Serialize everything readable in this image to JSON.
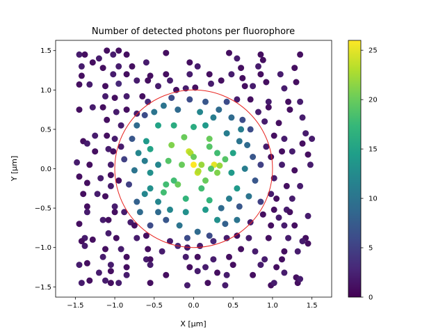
{
  "chart_data": {
    "type": "scatter",
    "title": "Number of detected photons per fluorophore",
    "xlabel": "X [μm]",
    "ylabel": "Y [μm]",
    "xlim": [
      -1.75,
      1.75
    ],
    "ylim": [
      -1.63,
      1.63
    ],
    "xticks": [
      "−1.5",
      "−1.0",
      "−0.5",
      "0.0",
      "0.5",
      "1.0",
      "1.5"
    ],
    "xtick_values": [
      -1.5,
      -1.0,
      -0.5,
      0.0,
      0.5,
      1.0,
      1.5
    ],
    "yticks": [
      "−1.5",
      "−1.0",
      "−0.5",
      "0.0",
      "0.5",
      "1.0",
      "1.5"
    ],
    "ytick_values": [
      -1.5,
      -1.0,
      -0.5,
      0.0,
      0.5,
      1.0,
      1.5
    ],
    "grid": false,
    "colormap": "viridis",
    "colorbar": {
      "range": [
        0,
        26
      ],
      "ticks": [
        "0",
        "5",
        "10",
        "15",
        "20",
        "25"
      ],
      "tick_values": [
        0,
        5,
        10,
        15,
        20,
        25
      ]
    },
    "circle": {
      "center": [
        0,
        0
      ],
      "radius": 1.0,
      "color": "#e8231f"
    },
    "points": [
      [
        0.0,
        0.05,
        26
      ],
      [
        0.26,
        0.05,
        25
      ],
      [
        0.05,
        -0.05,
        24
      ],
      [
        -0.06,
        0.22,
        24
      ],
      [
        -0.04,
        0.2,
        23
      ],
      [
        0.06,
        -0.03,
        23
      ],
      [
        0.33,
        0.04,
        22
      ],
      [
        -0.28,
        0.3,
        21
      ],
      [
        0.2,
        0.38,
        20
      ],
      [
        -0.12,
        0.4,
        20
      ],
      [
        -0.32,
        0.1,
        19
      ],
      [
        -0.2,
        -0.2,
        20
      ],
      [
        0.4,
        0.12,
        19
      ],
      [
        0.22,
        0.0,
        19
      ],
      [
        -0.35,
        -0.2,
        18
      ],
      [
        0.1,
        -0.25,
        18
      ],
      [
        0.2,
        -0.4,
        17
      ],
      [
        -0.1,
        -0.38,
        17
      ],
      [
        0.3,
        0.2,
        18
      ],
      [
        -0.38,
        -0.3,
        18
      ],
      [
        -0.45,
        0.55,
        15
      ],
      [
        -0.25,
        0.55,
        16
      ],
      [
        0.0,
        0.53,
        16
      ],
      [
        -0.55,
        0.25,
        15
      ],
      [
        -0.6,
        0.35,
        14
      ],
      [
        0.5,
        0.2,
        15
      ],
      [
        0.48,
        -0.05,
        14
      ],
      [
        0.55,
        -0.25,
        14
      ],
      [
        -0.55,
        -0.05,
        13
      ],
      [
        -0.62,
        -0.32,
        12
      ],
      [
        0.3,
        -0.65,
        13
      ],
      [
        0.15,
        -0.52,
        14
      ],
      [
        -0.3,
        -0.52,
        12
      ],
      [
        0.08,
        0.72,
        12
      ],
      [
        -0.45,
        0.05,
        12
      ],
      [
        -0.62,
        0.1,
        11
      ],
      [
        0.42,
        0.45,
        11
      ],
      [
        0.6,
        0.5,
        11
      ],
      [
        0.65,
        0.0,
        11
      ],
      [
        -0.7,
        0.2,
        12
      ],
      [
        -0.38,
        0.8,
        10
      ],
      [
        -0.5,
        0.72,
        10
      ],
      [
        0.25,
        0.65,
        11
      ],
      [
        -0.75,
        -0.02,
        10
      ],
      [
        0.7,
        -0.35,
        10
      ],
      [
        0.55,
        -0.65,
        10
      ],
      [
        -0.18,
        -0.72,
        10
      ],
      [
        -0.45,
        -0.55,
        9
      ],
      [
        -0.68,
        -0.55,
        9
      ],
      [
        0.05,
        -0.8,
        9
      ],
      [
        0.32,
        0.75,
        9
      ],
      [
        0.48,
        0.65,
        9
      ],
      [
        0.68,
        0.3,
        9
      ],
      [
        -0.72,
        0.55,
        9
      ],
      [
        0.35,
        -0.5,
        9
      ],
      [
        -0.2,
        0.75,
        9
      ],
      [
        0.0,
        0.15,
        20
      ],
      [
        0.3,
        -0.05,
        21
      ],
      [
        -0.25,
        -0.15,
        18
      ],
      [
        0.2,
        0.28,
        19
      ],
      [
        -0.55,
        -0.25,
        13
      ],
      [
        -0.72,
        -0.42,
        8
      ],
      [
        -0.35,
        -0.65,
        7
      ],
      [
        0.4,
        -0.7,
        8
      ],
      [
        0.58,
        -0.48,
        7
      ],
      [
        0.75,
        0.15,
        7
      ],
      [
        0.78,
        -0.15,
        7
      ],
      [
        -0.78,
        0.38,
        7
      ],
      [
        -0.62,
        0.68,
        6
      ],
      [
        0.15,
        0.85,
        7
      ],
      [
        -0.05,
        0.88,
        6
      ],
      [
        0.62,
        0.62,
        6
      ],
      [
        0.72,
        0.5,
        6
      ],
      [
        -0.28,
        0.9,
        6
      ],
      [
        0.42,
        0.85,
        6
      ],
      [
        -0.08,
        -0.88,
        6
      ],
      [
        0.2,
        -0.85,
        6
      ],
      [
        -0.55,
        -0.72,
        6
      ],
      [
        -0.82,
        -0.2,
        5
      ],
      [
        0.85,
        0.05,
        5
      ],
      [
        0.85,
        -0.42,
        5
      ],
      [
        -0.88,
        0.12,
        5
      ],
      [
        0.15,
        0.55,
        14
      ],
      [
        -0.1,
        -0.55,
        13
      ],
      [
        0.45,
        -0.38,
        11
      ],
      [
        -0.45,
        -0.42,
        12
      ],
      [
        0.58,
        0.35,
        10
      ],
      [
        0.1,
        0.05,
        22
      ],
      [
        -0.15,
        0.05,
        20
      ],
      [
        0.15,
        -0.15,
        20
      ],
      [
        -1.45,
        1.45,
        2
      ],
      [
        -1.38,
        1.45,
        1
      ],
      [
        -1.2,
        1.4,
        2
      ],
      [
        -1.1,
        1.5,
        1
      ],
      [
        -1.02,
        1.45,
        2
      ],
      [
        -0.95,
        1.5,
        1
      ],
      [
        -0.35,
        1.47,
        1
      ],
      [
        0.45,
        1.47,
        1
      ],
      [
        0.55,
        1.4,
        2
      ],
      [
        0.85,
        1.45,
        1
      ],
      [
        0.88,
        1.38,
        1
      ],
      [
        1.35,
        1.45,
        1
      ],
      [
        -1.42,
        1.3,
        2
      ],
      [
        -1.28,
        1.35,
        1
      ],
      [
        -1.15,
        1.28,
        1
      ],
      [
        -0.95,
        1.3,
        2
      ],
      [
        -0.78,
        1.3,
        1
      ],
      [
        0.6,
        1.28,
        1
      ],
      [
        0.82,
        1.3,
        2
      ],
      [
        1.28,
        1.28,
        1
      ],
      [
        -1.42,
        1.18,
        1
      ],
      [
        -1.02,
        1.2,
        2
      ],
      [
        -0.85,
        1.2,
        1
      ],
      [
        -0.55,
        1.18,
        1
      ],
      [
        -0.35,
        1.2,
        1
      ],
      [
        -0.05,
        1.2,
        2
      ],
      [
        0.2,
        1.2,
        1
      ],
      [
        0.48,
        1.2,
        2
      ],
      [
        0.85,
        1.2,
        1
      ],
      [
        1.1,
        1.2,
        2
      ],
      [
        -1.45,
        1.07,
        1
      ],
      [
        -1.32,
        1.07,
        2
      ],
      [
        -1.12,
        1.05,
        1
      ],
      [
        -0.95,
        1.08,
        3
      ],
      [
        -0.72,
        1.12,
        2
      ],
      [
        -0.58,
        1.12,
        1
      ],
      [
        -0.3,
        1.12,
        2
      ],
      [
        -0.22,
        1.0,
        1
      ],
      [
        -0.1,
        1.02,
        2
      ],
      [
        0.02,
        1.03,
        1
      ],
      [
        0.22,
        1.08,
        2
      ],
      [
        0.35,
        1.12,
        1
      ],
      [
        0.75,
        1.05,
        2
      ],
      [
        0.92,
        1.1,
        1
      ],
      [
        1.15,
        1.02,
        2
      ],
      [
        1.3,
        1.1,
        1
      ],
      [
        -1.12,
        0.92,
        2
      ],
      [
        -1.0,
        0.9,
        1
      ],
      [
        -0.85,
        0.92,
        2
      ],
      [
        -0.65,
        0.92,
        1
      ],
      [
        -0.58,
        0.85,
        3
      ],
      [
        0.55,
        0.88,
        2
      ],
      [
        0.72,
        0.88,
        1
      ],
      [
        0.95,
        0.85,
        2
      ],
      [
        1.2,
        0.85,
        1
      ],
      [
        1.35,
        0.85,
        2
      ],
      [
        -1.45,
        0.75,
        1
      ],
      [
        -1.28,
        0.78,
        2
      ],
      [
        -1.15,
        0.78,
        1
      ],
      [
        -0.98,
        0.72,
        2
      ],
      [
        -0.85,
        0.75,
        1
      ],
      [
        -0.72,
        0.7,
        2
      ],
      [
        0.82,
        0.72,
        2
      ],
      [
        0.95,
        0.78,
        1
      ],
      [
        1.22,
        0.75,
        1
      ],
      [
        1.38,
        0.65,
        2
      ],
      [
        -1.1,
        0.62,
        1
      ],
      [
        -0.92,
        0.55,
        2
      ],
      [
        0.9,
        0.6,
        2
      ],
      [
        1.08,
        0.58,
        1
      ],
      [
        -1.25,
        0.42,
        2
      ],
      [
        -1.1,
        0.42,
        1
      ],
      [
        -1.0,
        0.38,
        2
      ],
      [
        1.02,
        0.42,
        1
      ],
      [
        1.15,
        0.38,
        2
      ],
      [
        1.38,
        0.32,
        1
      ],
      [
        1.5,
        0.38,
        2
      ],
      [
        -1.4,
        0.35,
        1
      ],
      [
        -1.35,
        0.32,
        2
      ],
      [
        -1.02,
        0.22,
        1
      ],
      [
        -1.08,
        0.25,
        2
      ],
      [
        -1.25,
        0.22,
        1
      ],
      [
        -0.92,
        0.28,
        2
      ],
      [
        0.92,
        0.28,
        2
      ],
      [
        1.12,
        0.22,
        1
      ],
      [
        1.25,
        0.22,
        2
      ],
      [
        1.45,
        0.18,
        1
      ],
      [
        -1.48,
        0.08,
        2
      ],
      [
        -1.32,
        0.05,
        1
      ],
      [
        -1.05,
        0.05,
        2
      ],
      [
        0.98,
        0.15,
        1
      ],
      [
        1.12,
        0.05,
        2
      ],
      [
        1.28,
        -0.02,
        1
      ],
      [
        1.48,
        0.05,
        2
      ],
      [
        -1.05,
        -0.08,
        1
      ],
      [
        -1.18,
        -0.12,
        2
      ],
      [
        -1.35,
        -0.18,
        1
      ],
      [
        -1.05,
        -0.22,
        2
      ],
      [
        -0.95,
        -0.15,
        1
      ],
      [
        1.02,
        -0.12,
        2
      ],
      [
        1.18,
        -0.22,
        1
      ],
      [
        1.35,
        -0.22,
        2
      ],
      [
        -1.4,
        -0.32,
        1
      ],
      [
        -1.22,
        -0.32,
        2
      ],
      [
        -1.12,
        -0.35,
        1
      ],
      [
        0.98,
        -0.32,
        2
      ],
      [
        1.05,
        -0.38,
        1
      ],
      [
        1.25,
        -0.38,
        2
      ],
      [
        -1.35,
        -0.48,
        1
      ],
      [
        -1.0,
        -0.48,
        2
      ],
      [
        1.02,
        -0.52,
        1
      ],
      [
        1.18,
        -0.52,
        2
      ],
      [
        -1.35,
        -0.55,
        2
      ],
      [
        -1.0,
        -0.55,
        1
      ],
      [
        -0.88,
        -0.55,
        2
      ],
      [
        0.88,
        -0.58,
        1
      ],
      [
        1.08,
        -0.62,
        2
      ],
      [
        1.22,
        -0.55,
        1
      ],
      [
        -1.15,
        -0.65,
        2
      ],
      [
        -1.08,
        -0.65,
        1
      ],
      [
        -0.8,
        -0.68,
        2
      ],
      [
        -0.75,
        -0.72,
        1
      ],
      [
        0.72,
        -0.68,
        2
      ],
      [
        0.98,
        -0.72,
        1
      ],
      [
        1.15,
        -0.72,
        2
      ],
      [
        1.28,
        -0.72,
        1
      ],
      [
        -1.38,
        -0.88,
        2
      ],
      [
        -1.28,
        -0.9,
        1
      ],
      [
        -1.08,
        -0.82,
        2
      ],
      [
        -0.98,
        -0.88,
        1
      ],
      [
        -0.72,
        -0.88,
        2
      ],
      [
        -0.6,
        -0.85,
        1
      ],
      [
        -0.3,
        -0.92,
        2
      ],
      [
        -0.2,
        -0.98,
        3
      ],
      [
        -0.08,
        -1.0,
        2
      ],
      [
        0.08,
        -0.98,
        2
      ],
      [
        0.25,
        -0.92,
        3
      ],
      [
        0.42,
        -0.88,
        2
      ],
      [
        0.55,
        -0.85,
        1
      ],
      [
        0.7,
        -0.88,
        2
      ],
      [
        0.95,
        -0.88,
        1
      ],
      [
        1.2,
        -0.88,
        2
      ],
      [
        1.42,
        -0.88,
        1
      ],
      [
        1.38,
        -0.92,
        2
      ],
      [
        -1.42,
        -0.92,
        1
      ],
      [
        -1.38,
        -0.98,
        2
      ],
      [
        -1.12,
        -1.02,
        1
      ],
      [
        -0.92,
        -1.02,
        2
      ],
      [
        -0.58,
        -1.02,
        1
      ],
      [
        -0.4,
        -1.05,
        2
      ],
      [
        0.6,
        -1.02,
        1
      ],
      [
        0.78,
        -1.05,
        2
      ],
      [
        1.15,
        -1.05,
        1
      ],
      [
        1.32,
        -1.05,
        2
      ],
      [
        1.45,
        -0.95,
        1
      ],
      [
        -1.15,
        -1.12,
        2
      ],
      [
        -0.85,
        -1.12,
        1
      ],
      [
        -0.6,
        -1.15,
        2
      ],
      [
        -0.55,
        -1.15,
        1
      ],
      [
        -0.1,
        -1.12,
        2
      ],
      [
        0.05,
        -1.12,
        1
      ],
      [
        0.25,
        -1.15,
        2
      ],
      [
        0.45,
        -1.12,
        1
      ],
      [
        0.9,
        -1.15,
        2
      ],
      [
        1.12,
        -1.15,
        1
      ],
      [
        -1.45,
        -1.22,
        2
      ],
      [
        -1.35,
        -1.2,
        1
      ],
      [
        -1.05,
        -1.22,
        2
      ],
      [
        -0.85,
        -1.25,
        1
      ],
      [
        -0.55,
        -1.22,
        2
      ],
      [
        -0.05,
        -1.25,
        1
      ],
      [
        0.15,
        -1.25,
        2
      ],
      [
        0.5,
        -1.22,
        1
      ],
      [
        0.85,
        -1.22,
        2
      ],
      [
        1.05,
        -1.25,
        1
      ],
      [
        -1.2,
        -1.32,
        2
      ],
      [
        -1.05,
        -1.3,
        1
      ],
      [
        -0.85,
        -1.35,
        2
      ],
      [
        -0.35,
        -1.35,
        1
      ],
      [
        0.05,
        -1.3,
        2
      ],
      [
        0.3,
        -1.32,
        1
      ],
      [
        0.42,
        -1.35,
        2
      ],
      [
        0.75,
        -1.35,
        1
      ],
      [
        1.15,
        -1.32,
        2
      ],
      [
        1.3,
        -1.38,
        1
      ],
      [
        -1.42,
        -1.45,
        2
      ],
      [
        -1.32,
        -1.42,
        1
      ],
      [
        -1.12,
        -1.42,
        2
      ],
      [
        -1.05,
        -1.45,
        1
      ],
      [
        -0.95,
        -1.45,
        2
      ],
      [
        -0.55,
        -1.45,
        1
      ],
      [
        -0.08,
        -1.48,
        2
      ],
      [
        0.18,
        -1.45,
        1
      ],
      [
        0.4,
        -1.48,
        2
      ],
      [
        0.98,
        -1.48,
        1
      ],
      [
        1.02,
        -1.45,
        2
      ],
      [
        1.32,
        -1.45,
        1
      ],
      [
        1.35,
        -1.4,
        2
      ],
      [
        -0.85,
        1.45,
        1
      ],
      [
        0.05,
        1.3,
        2
      ],
      [
        -0.05,
        1.35,
        1
      ],
      [
        -0.45,
        1.05,
        2
      ],
      [
        0.65,
        1.05,
        1
      ],
      [
        1.42,
        0.45,
        2
      ],
      [
        -1.45,
        -0.1,
        1
      ],
      [
        1.45,
        -0.6,
        2
      ],
      [
        -1.45,
        -0.7,
        1
      ],
      [
        0.62,
        1.15,
        1
      ],
      [
        -0.6,
        1.35,
        2
      ]
    ]
  }
}
